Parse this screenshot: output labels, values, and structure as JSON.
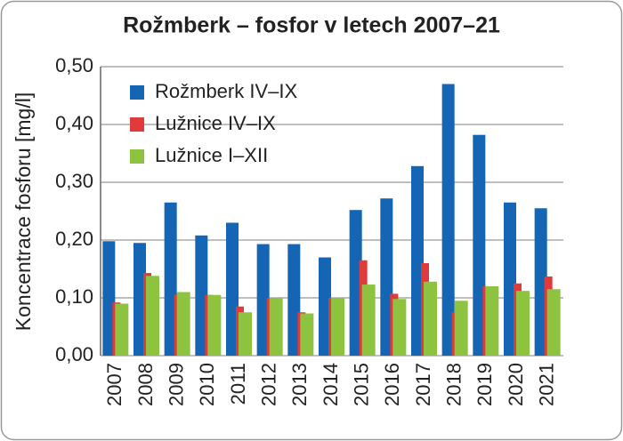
{
  "chart_data": {
    "type": "bar",
    "title": "Rožmberk – fosfor v letech 2007–21",
    "y_label": "Koncentrace fosforu [mg/l]",
    "categories": [
      "2007",
      "2008",
      "2009",
      "2010",
      "2011",
      "2012",
      "2013",
      "2014",
      "2015",
      "2016",
      "2017",
      "2018",
      "2019",
      "2020",
      "2021"
    ],
    "series": [
      {
        "name": "Rožmberk IV–IX",
        "color": "#1565b5",
        "values": [
          0.198,
          0.195,
          0.265,
          0.208,
          0.23,
          0.193,
          0.193,
          0.17,
          0.252,
          0.272,
          0.328,
          0.47,
          0.382,
          0.265,
          0.255
        ]
      },
      {
        "name": "Lužnice IV–IX",
        "color": "#e03a3a",
        "values": [
          0.092,
          0.143,
          0.105,
          0.105,
          0.085,
          0.1,
          0.075,
          0.1,
          0.165,
          0.107,
          0.16,
          0.075,
          0.12,
          0.125,
          0.137
        ]
      },
      {
        "name": "Lužnice I–XII",
        "color": "#8dc33f",
        "values": [
          0.09,
          0.138,
          0.11,
          0.105,
          0.075,
          0.1,
          0.073,
          0.1,
          0.123,
          0.098,
          0.128,
          0.095,
          0.12,
          0.112,
          0.115
        ]
      }
    ],
    "ylim": [
      0,
      0.5
    ],
    "yticks": [
      {
        "value": 0,
        "label": "0,00"
      },
      {
        "value": 0.1,
        "label": "0,10"
      },
      {
        "value": 0.2,
        "label": "0,20"
      },
      {
        "value": 0.3,
        "label": "0,30"
      },
      {
        "value": 0.4,
        "label": "0,40"
      },
      {
        "value": 0.5,
        "label": "0,50"
      }
    ],
    "grid": true,
    "legend": "upper left"
  }
}
